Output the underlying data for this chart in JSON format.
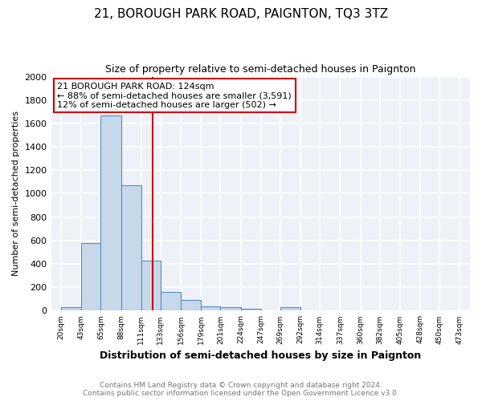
{
  "title": "21, BOROUGH PARK ROAD, PAIGNTON, TQ3 3TZ",
  "subtitle": "Size of property relative to semi-detached houses in Paignton",
  "xlabel": "Distribution of semi-detached houses by size in Paignton",
  "ylabel": "Number of semi-detached properties",
  "bin_labels": [
    "20sqm",
    "43sqm",
    "65sqm",
    "88sqm",
    "111sqm",
    "133sqm",
    "156sqm",
    "179sqm",
    "201sqm",
    "224sqm",
    "247sqm",
    "269sqm",
    "292sqm",
    "314sqm",
    "337sqm",
    "360sqm",
    "382sqm",
    "405sqm",
    "428sqm",
    "450sqm",
    "473sqm"
  ],
  "bin_edges": [
    20,
    43,
    65,
    88,
    111,
    133,
    156,
    179,
    201,
    224,
    247,
    269,
    292,
    314,
    337,
    360,
    382,
    405,
    428,
    450,
    473
  ],
  "bar_heights": [
    30,
    580,
    1670,
    1070,
    430,
    160,
    90,
    40,
    30,
    20,
    0,
    30,
    0,
    0,
    0,
    0,
    0,
    0,
    0,
    0
  ],
  "bar_color": "#c8d8eb",
  "bar_edge_color": "#5090c0",
  "property_value": 124,
  "property_line_color": "#cc0000",
  "annotation_line1": "21 BOROUGH PARK ROAD: 124sqm",
  "annotation_line2": "← 88% of semi-detached houses are smaller (3,591)",
  "annotation_line3": "12% of semi-detached houses are larger (502) →",
  "annotation_box_edge": "#cc0000",
  "ylim": [
    0,
    2000
  ],
  "yticks": [
    0,
    200,
    400,
    600,
    800,
    1000,
    1200,
    1400,
    1600,
    1800,
    2000
  ],
  "footer_line1": "Contains HM Land Registry data © Crown copyright and database right 2024.",
  "footer_line2": "Contains public sector information licensed under the Open Government Licence v3.0.",
  "background_color": "#ffffff",
  "plot_background_color": "#eef2f8",
  "grid_color": "#ffffff",
  "title_fontsize": 11,
  "subtitle_fontsize": 9
}
